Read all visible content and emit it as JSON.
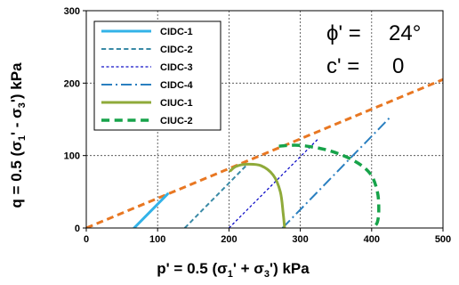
{
  "chart_data": {
    "type": "line",
    "xlabel": "p' = 0.5 (σ₁' + σ₃')   kPa",
    "xlabel_parts": [
      "p' = 0.5 (σ",
      "1",
      "' + σ",
      "3",
      "')   kPa"
    ],
    "ylabel": "q = 0.5 (σ₁' - σ₃')   kPa",
    "ylabel_parts": [
      "q = 0.5 (σ",
      "1",
      "' - σ",
      "3",
      "')   ",
      "kPa"
    ],
    "xlim": [
      0,
      500
    ],
    "ylim": [
      0,
      300
    ],
    "xticks": [
      0,
      100,
      200,
      300,
      400,
      500
    ],
    "yticks": [
      0,
      100,
      200,
      300
    ],
    "grid": true,
    "legend_position": "top-left",
    "annotations": [
      {
        "label": "ϕ' =",
        "value": "24°"
      },
      {
        "label": "c' =",
        "value": "0"
      }
    ],
    "series": [
      {
        "name": "CIDC-1",
        "color": "#33b3e8",
        "style": "solid",
        "width": 3,
        "x": [
          67,
          114
        ],
        "y": [
          0,
          47
        ]
      },
      {
        "name": "CIDC-2",
        "color": "#3a8aa6",
        "style": "dash",
        "width": 2,
        "x": [
          138,
          224
        ],
        "y": [
          0,
          86
        ]
      },
      {
        "name": "CIDC-3",
        "color": "#1010c8",
        "style": "dot",
        "width": 1.3,
        "x": [
          200,
          326
        ],
        "y": [
          0,
          124
        ]
      },
      {
        "name": "CIDC-4",
        "color": "#2a7fc0",
        "style": "dashdot",
        "width": 2,
        "x": [
          275,
          427
        ],
        "y": [
          0,
          154
        ]
      },
      {
        "name": "CIUC-1",
        "color": "#8faa3a",
        "style": "solid",
        "width": 3,
        "x": [
          202,
          210,
          225,
          245,
          262,
          272,
          276,
          278
        ],
        "y": [
          79,
          85,
          88,
          86,
          73,
          50,
          20,
          0
        ]
      },
      {
        "name": "CIUC-2",
        "color": "#17a34a",
        "style": "dash",
        "width": 3.5,
        "x": [
          270,
          300,
          340,
          375,
          398,
          408,
          410,
          408,
          402
        ],
        "y": [
          113,
          114,
          107,
          93,
          75,
          50,
          25,
          8,
          0
        ]
      },
      {
        "name": "",
        "color": "#e87722",
        "style": "dash",
        "width": 3,
        "x": [
          0,
          500
        ],
        "y": [
          0,
          205
        ]
      }
    ]
  }
}
